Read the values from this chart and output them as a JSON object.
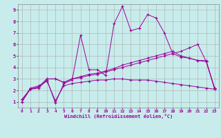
{
  "xlabel": "Windchill (Refroidissement éolien,°C)",
  "bg_color": "#c8ecec",
  "line_color": "#990099",
  "grid_color": "#aaaaaa",
  "xlim_min": -0.5,
  "xlim_max": 23.5,
  "ylim_min": 0.5,
  "ylim_max": 9.5,
  "xticks": [
    0,
    1,
    2,
    3,
    4,
    5,
    6,
    7,
    8,
    9,
    10,
    11,
    12,
    13,
    14,
    15,
    16,
    17,
    18,
    19,
    20,
    21,
    22,
    23
  ],
  "yticks": [
    1,
    2,
    3,
    4,
    5,
    6,
    7,
    8,
    9
  ],
  "lines": [
    [
      1.0,
      2.1,
      2.2,
      2.9,
      0.9,
      2.6,
      2.9,
      6.8,
      3.8,
      3.8,
      3.3,
      7.8,
      9.3,
      7.2,
      7.4,
      8.6,
      8.3,
      7.0,
      5.2,
      4.9,
      4.8,
      4.6,
      4.6,
      2.1
    ],
    [
      1.2,
      2.1,
      2.3,
      3.0,
      3.0,
      2.7,
      3.0,
      3.1,
      3.3,
      3.4,
      3.6,
      3.8,
      4.0,
      4.2,
      4.4,
      4.6,
      4.8,
      5.0,
      5.2,
      5.4,
      5.7,
      6.0,
      4.5,
      2.2
    ],
    [
      1.2,
      2.1,
      2.3,
      3.0,
      3.0,
      2.7,
      3.0,
      3.2,
      3.4,
      3.5,
      3.7,
      3.9,
      4.2,
      4.4,
      4.6,
      4.8,
      5.0,
      5.2,
      5.4,
      5.0,
      4.8,
      4.6,
      4.5,
      2.2
    ],
    [
      1.0,
      2.2,
      2.4,
      2.8,
      1.1,
      2.4,
      2.6,
      2.7,
      2.8,
      2.9,
      2.9,
      3.0,
      3.0,
      2.9,
      2.9,
      2.9,
      2.8,
      2.7,
      2.6,
      2.5,
      2.4,
      2.3,
      2.2,
      2.1
    ]
  ]
}
